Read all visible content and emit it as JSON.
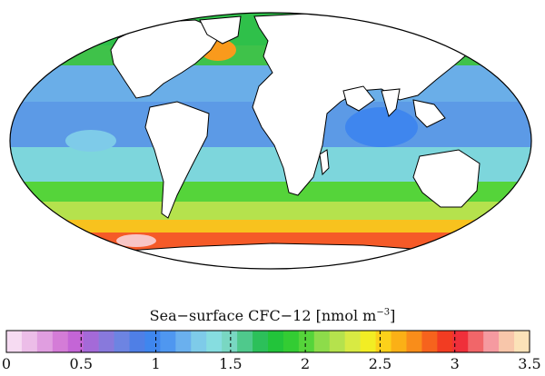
{
  "colorbar": {
    "title_main": "Sea−surface CFC−12 [nmol m",
    "title_exp": "−3",
    "title_end": "]",
    "min": 0,
    "max": 3.5,
    "ticks": [
      "0",
      "0.5",
      "1",
      "1.5",
      "2",
      "2.5",
      "3",
      "3.5"
    ],
    "colors": [
      "#f6dbf2",
      "#ecbde8",
      "#e09ee0",
      "#d47cd7",
      "#c465d6",
      "#a46ad8",
      "#8879dc",
      "#6d84e2",
      "#4f7fe6",
      "#3f86ee",
      "#4f97f0",
      "#6ab0ee",
      "#7ecbe9",
      "#86dde0",
      "#79d7c2",
      "#4fc98c",
      "#2cc05a",
      "#22c43a",
      "#33cc33",
      "#55d43a",
      "#8ddc4a",
      "#b5e24d",
      "#d8ea43",
      "#f2ed24",
      "#fcd11a",
      "#fbb016",
      "#f98d1a",
      "#f6631d",
      "#f23c22",
      "#ef2f3a",
      "#f16669",
      "#f59aa0",
      "#f8c6aa",
      "#fbe2b8"
    ]
  },
  "map": {
    "legend_colors": {
      "antarctic_band": "#f55a28",
      "southern_band": "#f8b21e",
      "midlat_band": "#2cc44a",
      "tropical": "#5c9ae6",
      "subtropical": "#7dd6dc",
      "north_atlantic": "#f99a1c",
      "land": "#ffffff"
    }
  }
}
